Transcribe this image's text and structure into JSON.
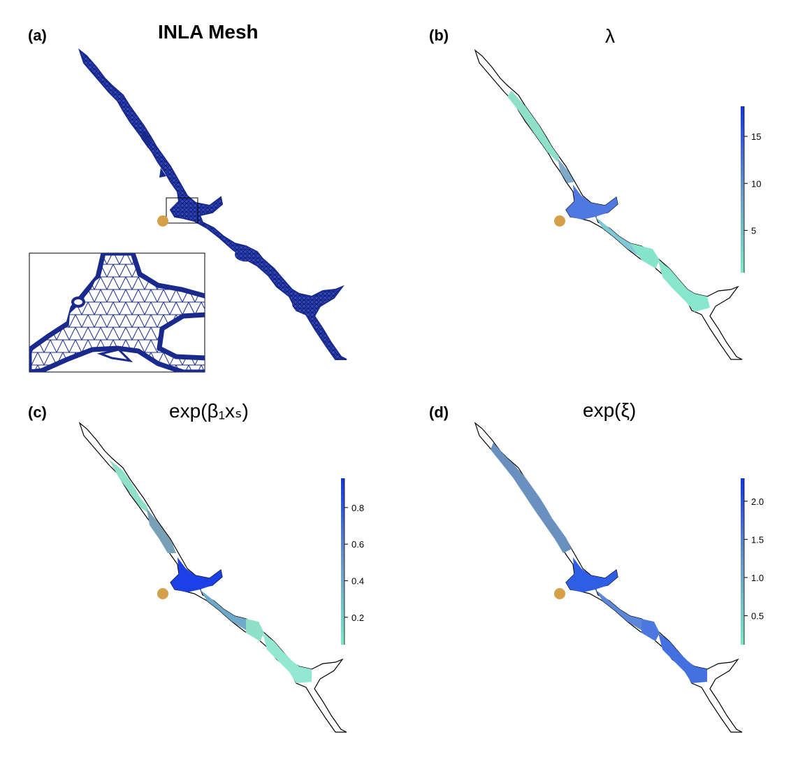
{
  "panels": [
    {
      "id": "a",
      "label": "(a)",
      "title": "INLA Mesh"
    },
    {
      "id": "b",
      "label": "(b)",
      "title": "λ",
      "legend": {
        "min": 0.5,
        "max": 18.2,
        "ticks": [
          5,
          10,
          15
        ],
        "tick_labels": [
          "5",
          "10",
          "15"
        ],
        "color_low": "#7de8c8",
        "color_high": "#1436e0"
      }
    },
    {
      "id": "c",
      "label": "(c)",
      "title": "exp(β₁xₛ)",
      "legend": {
        "min": 0.05,
        "max": 0.96,
        "ticks": [
          0.2,
          0.4,
          0.6,
          0.8
        ],
        "tick_labels": [
          "0.2",
          "0.4",
          "0.6",
          "0.8"
        ],
        "color_low": "#7de8c8",
        "color_high": "#1436e0"
      }
    },
    {
      "id": "d",
      "label": "(d)",
      "title": "exp(ξ)",
      "legend": {
        "min": 0.12,
        "max": 2.3,
        "ticks": [
          0.5,
          1.0,
          1.5,
          2.0
        ],
        "tick_labels": [
          "0.5",
          "1.0",
          "1.5",
          "2.0"
        ],
        "color_low": "#7de8c8",
        "color_high": "#1436e0"
      }
    }
  ],
  "colors": {
    "mesh": "#1a2a8c",
    "outline": "#000000",
    "marker": "#d4a048"
  }
}
